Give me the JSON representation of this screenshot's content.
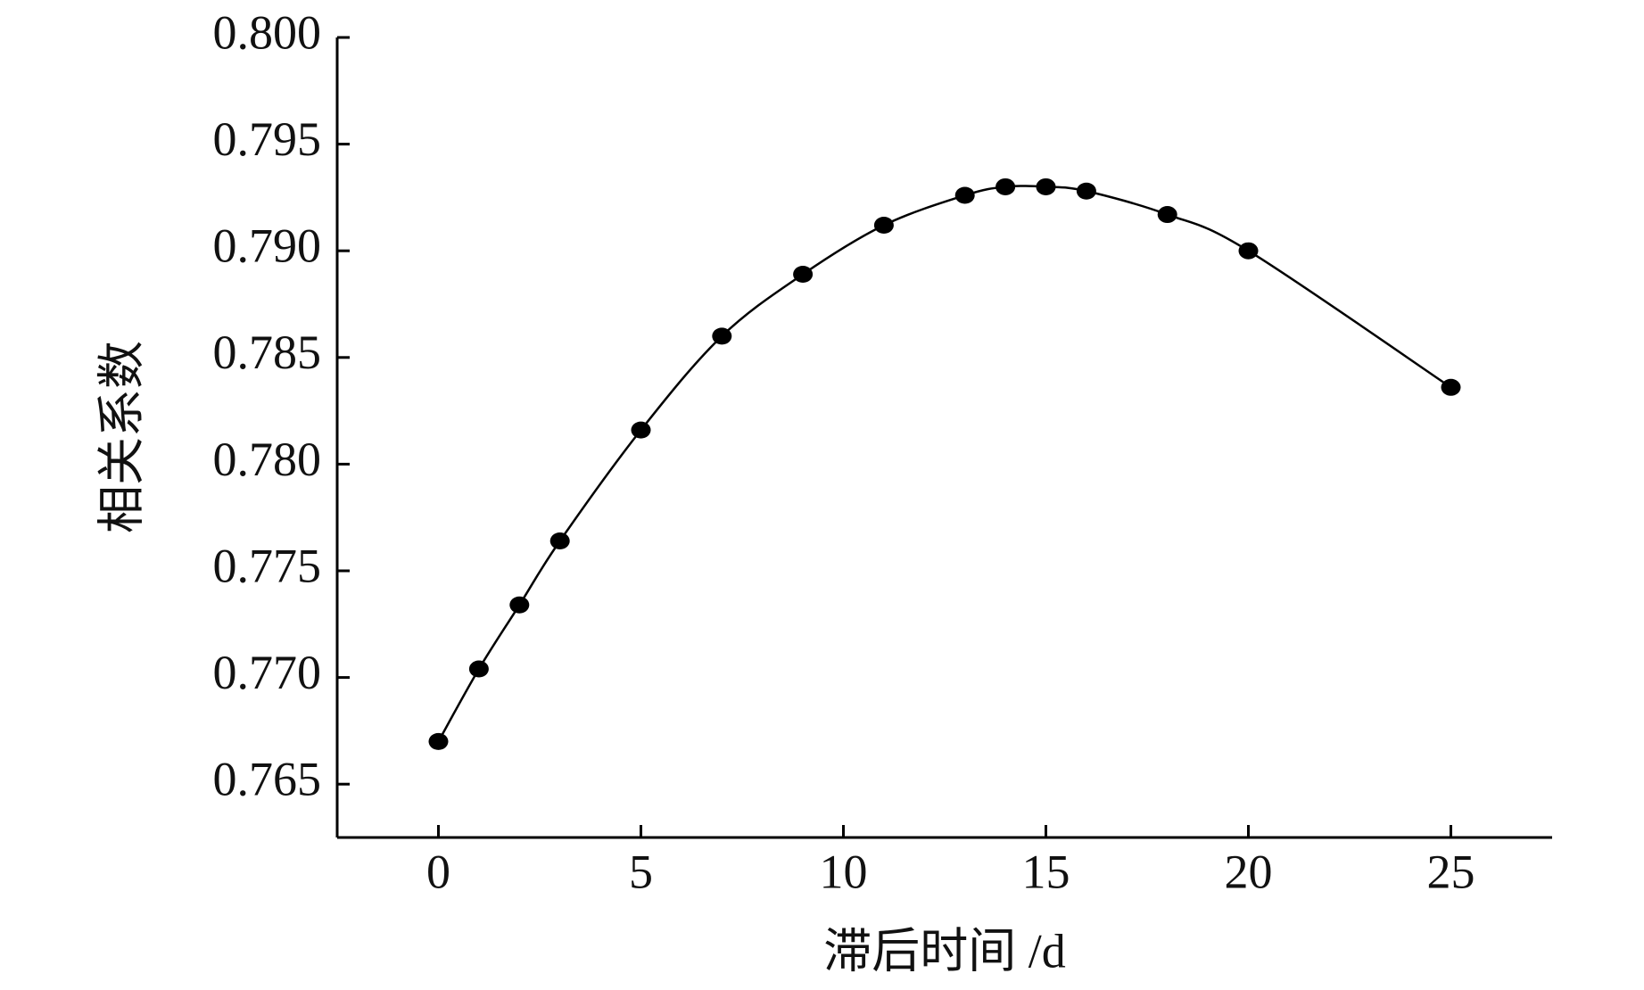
{
  "chart_data": {
    "type": "line",
    "xlabel": "滞后时间 /d",
    "ylabel": "相关系数",
    "x": [
      0,
      1,
      2,
      3,
      5,
      7,
      9,
      11,
      13,
      14,
      15,
      16,
      18,
      20,
      25
    ],
    "series": [
      {
        "name": "相关系数",
        "color": "#000000",
        "values": [
          0.767,
          0.7704,
          0.7734,
          0.7764,
          0.7816,
          0.786,
          0.7889,
          0.7912,
          0.7926,
          0.793,
          0.793,
          0.7928,
          0.7917,
          0.79,
          0.7836
        ]
      }
    ],
    "xlim": [
      -2.5,
      27.5
    ],
    "xticks": [
      0,
      5,
      10,
      15,
      20,
      25
    ],
    "ylim": [
      0.7625,
      0.8
    ],
    "yticks": [
      0.765,
      {
        "value": 0.77,
        "label": "0.770"
      },
      0.775,
      {
        "value": 0.78,
        "label": "0.780"
      },
      0.785,
      {
        "value": 0.79,
        "label": "0.790"
      },
      0.795,
      {
        "value": 0.8,
        "label": "0.800"
      }
    ],
    "grid": false
  }
}
